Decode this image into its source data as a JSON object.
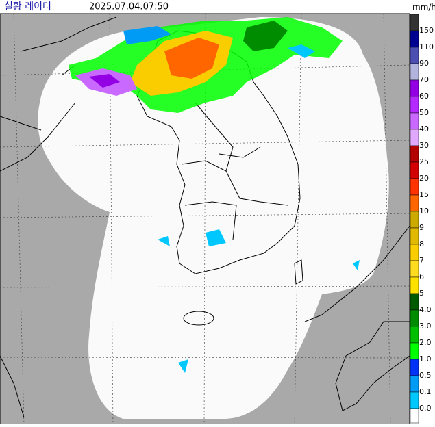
{
  "header": {
    "title": "실황 레이더",
    "timestamp": "2025.07.04.07:50",
    "unit": "mm/h"
  },
  "legend": {
    "labels": [
      "150",
      "110",
      "90",
      "70",
      "60",
      "50",
      "40",
      "30",
      "25",
      "20",
      "15",
      "10",
      "9",
      "8",
      "7",
      "6",
      "5",
      "4.0",
      "3.0",
      "2.0",
      "1.0",
      "0.5",
      "0.1",
      "0.0"
    ],
    "colors": [
      "#333333",
      "#000390",
      "#4c4eb1",
      "#b3b4de",
      "#9300e4",
      "#b329ff",
      "#c969ff",
      "#e0a9ff",
      "#b40000",
      "#d20000",
      "#ff3200",
      "#ff6600",
      "#ccaa00",
      "#e0b900",
      "#f9cd00",
      "#ffdc1f",
      "#ffe100",
      "#005a00",
      "#008c00",
      "#00be00",
      "#00ff00",
      "#0033f5",
      "#009bf5",
      "#00c8ff",
      "#ffffff"
    ]
  }
}
